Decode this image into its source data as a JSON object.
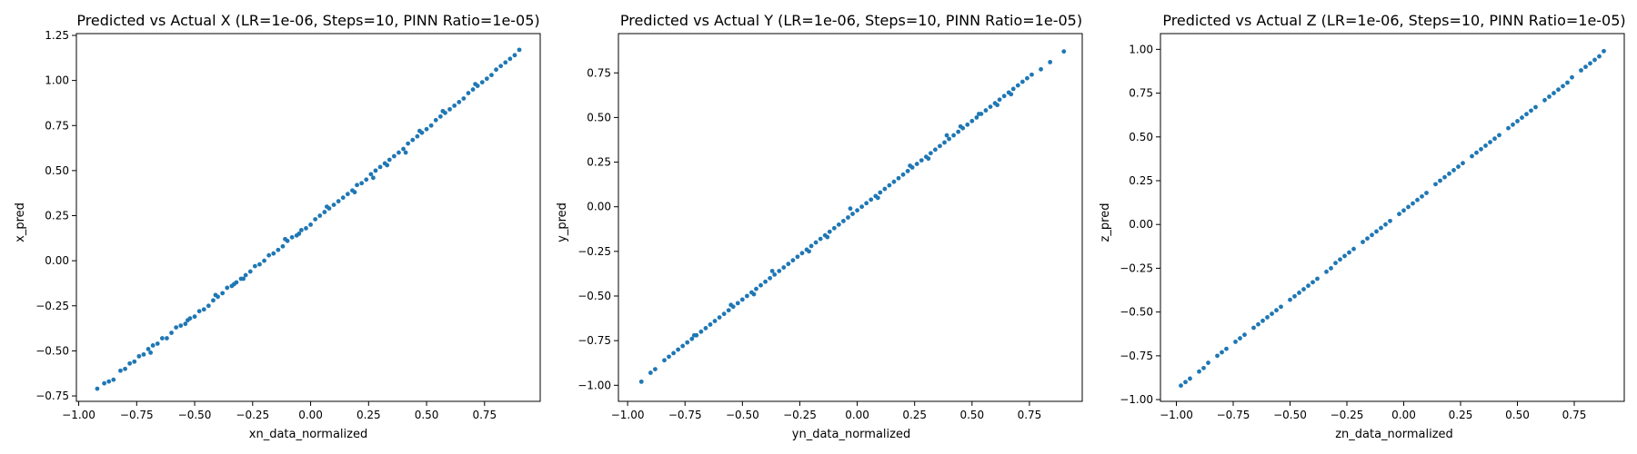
{
  "chart_data": [
    {
      "type": "scatter",
      "title": "Predicted vs Actual X (LR=1e-06, Steps=10, PINN Ratio=1e-05)",
      "xlabel": "xn_data_normalized",
      "ylabel": "x_pred",
      "xlim": [
        -1.01,
        0.99
      ],
      "ylim": [
        -0.78,
        1.26
      ],
      "xticks": [
        -1.0,
        -0.75,
        -0.5,
        -0.25,
        0.0,
        0.25,
        0.5,
        0.75
      ],
      "xtick_labels": [
        "−1.00",
        "−0.75",
        "−0.50",
        "−0.25",
        "0.00",
        "0.25",
        "0.50",
        "0.75"
      ],
      "yticks": [
        -0.75,
        -0.5,
        -0.25,
        0.0,
        0.25,
        0.5,
        0.75,
        1.0,
        1.25
      ],
      "ytick_labels": [
        "−0.75",
        "−0.50",
        "−0.25",
        "0.00",
        "0.25",
        "0.50",
        "0.75",
        "1.00",
        "1.25"
      ],
      "color": "#1f77b4",
      "points": [
        [
          -0.92,
          -0.71
        ],
        [
          -0.89,
          -0.68
        ],
        [
          -0.87,
          -0.67
        ],
        [
          -0.85,
          -0.66
        ],
        [
          -0.82,
          -0.61
        ],
        [
          -0.8,
          -0.6
        ],
        [
          -0.78,
          -0.57
        ],
        [
          -0.76,
          -0.56
        ],
        [
          -0.74,
          -0.53
        ],
        [
          -0.72,
          -0.52
        ],
        [
          -0.7,
          -0.49
        ],
        [
          -0.68,
          -0.47
        ],
        [
          -0.66,
          -0.46
        ],
        [
          -0.64,
          -0.43
        ],
        [
          -0.62,
          -0.43
        ],
        [
          -0.6,
          -0.4
        ],
        [
          -0.58,
          -0.37
        ],
        [
          -0.56,
          -0.36
        ],
        [
          -0.54,
          -0.35
        ],
        [
          -0.52,
          -0.32
        ],
        [
          -0.5,
          -0.31
        ],
        [
          -0.48,
          -0.28
        ],
        [
          -0.46,
          -0.27
        ],
        [
          -0.44,
          -0.25
        ],
        [
          -0.42,
          -0.22
        ],
        [
          -0.4,
          -0.2
        ],
        [
          -0.38,
          -0.18
        ],
        [
          -0.36,
          -0.15
        ],
        [
          -0.34,
          -0.14
        ],
        [
          -0.32,
          -0.12
        ],
        [
          -0.3,
          -0.1
        ],
        [
          -0.28,
          -0.08
        ],
        [
          -0.26,
          -0.06
        ],
        [
          -0.24,
          -0.03
        ],
        [
          -0.22,
          -0.02
        ],
        [
          -0.2,
          0.0
        ],
        [
          -0.18,
          0.03
        ],
        [
          -0.16,
          0.04
        ],
        [
          -0.14,
          0.06
        ],
        [
          -0.12,
          0.08
        ],
        [
          -0.1,
          0.11
        ],
        [
          -0.08,
          0.13
        ],
        [
          -0.06,
          0.14
        ],
        [
          -0.04,
          0.17
        ],
        [
          -0.02,
          0.18
        ],
        [
          0.0,
          0.2
        ],
        [
          0.02,
          0.23
        ],
        [
          0.04,
          0.25
        ],
        [
          0.06,
          0.27
        ],
        [
          0.08,
          0.29
        ],
        [
          0.1,
          0.31
        ],
        [
          0.12,
          0.33
        ],
        [
          0.14,
          0.35
        ],
        [
          0.16,
          0.37
        ],
        [
          0.18,
          0.39
        ],
        [
          0.2,
          0.42
        ],
        [
          0.22,
          0.43
        ],
        [
          0.24,
          0.45
        ],
        [
          0.26,
          0.48
        ],
        [
          0.28,
          0.5
        ],
        [
          0.3,
          0.52
        ],
        [
          0.32,
          0.54
        ],
        [
          0.34,
          0.56
        ],
        [
          0.36,
          0.58
        ],
        [
          0.38,
          0.6
        ],
        [
          0.4,
          0.62
        ],
        [
          0.42,
          0.65
        ],
        [
          0.44,
          0.67
        ],
        [
          0.46,
          0.69
        ],
        [
          0.48,
          0.71
        ],
        [
          0.5,
          0.73
        ],
        [
          0.52,
          0.75
        ],
        [
          0.54,
          0.78
        ],
        [
          0.56,
          0.8
        ],
        [
          0.58,
          0.82
        ],
        [
          0.6,
          0.84
        ],
        [
          0.62,
          0.86
        ],
        [
          0.64,
          0.88
        ],
        [
          0.66,
          0.9
        ],
        [
          0.68,
          0.93
        ],
        [
          0.7,
          0.95
        ],
        [
          0.72,
          0.97
        ],
        [
          0.74,
          0.99
        ],
        [
          0.76,
          1.01
        ],
        [
          0.78,
          1.03
        ],
        [
          0.8,
          1.06
        ],
        [
          0.82,
          1.08
        ],
        [
          0.84,
          1.1
        ],
        [
          0.86,
          1.12
        ],
        [
          0.88,
          1.14
        ],
        [
          0.9,
          1.17
        ],
        [
          -0.69,
          -0.51
        ],
        [
          -0.53,
          -0.33
        ],
        [
          -0.41,
          -0.19
        ],
        [
          -0.29,
          -0.1
        ],
        [
          -0.11,
          0.12
        ],
        [
          0.07,
          0.3
        ],
        [
          0.19,
          0.38
        ],
        [
          0.33,
          0.53
        ],
        [
          0.47,
          0.72
        ],
        [
          0.57,
          0.83
        ],
        [
          0.71,
          0.98
        ],
        [
          0.27,
          0.46
        ],
        [
          -0.05,
          0.15
        ],
        [
          0.41,
          0.6
        ],
        [
          -0.33,
          -0.13
        ]
      ]
    },
    {
      "type": "scatter",
      "title": "Predicted vs Actual Y (LR=1e-06, Steps=10, PINN Ratio=1e-05)",
      "xlabel": "yn_data_normalized",
      "ylabel": "y_pred",
      "xlim": [
        -1.04,
        0.98
      ],
      "ylim": [
        -1.09,
        0.97
      ],
      "xticks": [
        -1.0,
        -0.75,
        -0.5,
        -0.25,
        0.0,
        0.25,
        0.5,
        0.75
      ],
      "xtick_labels": [
        "−1.00",
        "−0.75",
        "−0.50",
        "−0.25",
        "0.00",
        "0.25",
        "0.50",
        "0.75"
      ],
      "yticks": [
        -1.0,
        -0.75,
        -0.5,
        -0.25,
        0.0,
        0.25,
        0.5,
        0.75
      ],
      "ytick_labels": [
        "−1.00",
        "−0.75",
        "−0.50",
        "−0.25",
        "0.00",
        "0.25",
        "0.50",
        "0.75"
      ],
      "color": "#1f77b4",
      "points": [
        [
          -0.94,
          -0.98
        ],
        [
          -0.9,
          -0.93
        ],
        [
          -0.88,
          -0.91
        ],
        [
          -0.84,
          -0.86
        ],
        [
          -0.82,
          -0.84
        ],
        [
          -0.8,
          -0.82
        ],
        [
          -0.78,
          -0.8
        ],
        [
          -0.76,
          -0.78
        ],
        [
          -0.74,
          -0.76
        ],
        [
          -0.72,
          -0.74
        ],
        [
          -0.7,
          -0.72
        ],
        [
          -0.68,
          -0.7
        ],
        [
          -0.66,
          -0.68
        ],
        [
          -0.64,
          -0.66
        ],
        [
          -0.62,
          -0.64
        ],
        [
          -0.6,
          -0.62
        ],
        [
          -0.58,
          -0.6
        ],
        [
          -0.56,
          -0.58
        ],
        [
          -0.54,
          -0.56
        ],
        [
          -0.52,
          -0.54
        ],
        [
          -0.5,
          -0.52
        ],
        [
          -0.48,
          -0.5
        ],
        [
          -0.46,
          -0.48
        ],
        [
          -0.44,
          -0.46
        ],
        [
          -0.42,
          -0.44
        ],
        [
          -0.4,
          -0.42
        ],
        [
          -0.38,
          -0.4
        ],
        [
          -0.36,
          -0.38
        ],
        [
          -0.34,
          -0.36
        ],
        [
          -0.32,
          -0.34
        ],
        [
          -0.3,
          -0.32
        ],
        [
          -0.28,
          -0.3
        ],
        [
          -0.26,
          -0.28
        ],
        [
          -0.24,
          -0.26
        ],
        [
          -0.22,
          -0.24
        ],
        [
          -0.2,
          -0.22
        ],
        [
          -0.18,
          -0.2
        ],
        [
          -0.16,
          -0.18
        ],
        [
          -0.14,
          -0.16
        ],
        [
          -0.12,
          -0.14
        ],
        [
          -0.1,
          -0.12
        ],
        [
          -0.08,
          -0.1
        ],
        [
          -0.06,
          -0.08
        ],
        [
          -0.04,
          -0.06
        ],
        [
          -0.02,
          -0.04
        ],
        [
          0.0,
          -0.02
        ],
        [
          0.02,
          0.0
        ],
        [
          0.04,
          0.02
        ],
        [
          0.06,
          0.04
        ],
        [
          0.08,
          0.06
        ],
        [
          0.1,
          0.08
        ],
        [
          0.12,
          0.1
        ],
        [
          0.14,
          0.12
        ],
        [
          0.16,
          0.14
        ],
        [
          0.18,
          0.16
        ],
        [
          0.2,
          0.18
        ],
        [
          0.22,
          0.2
        ],
        [
          0.24,
          0.22
        ],
        [
          0.26,
          0.24
        ],
        [
          0.28,
          0.26
        ],
        [
          0.3,
          0.28
        ],
        [
          0.32,
          0.3
        ],
        [
          0.34,
          0.32
        ],
        [
          0.36,
          0.34
        ],
        [
          0.38,
          0.36
        ],
        [
          0.4,
          0.38
        ],
        [
          0.42,
          0.4
        ],
        [
          0.44,
          0.42
        ],
        [
          0.46,
          0.44
        ],
        [
          0.48,
          0.46
        ],
        [
          0.5,
          0.48
        ],
        [
          0.52,
          0.5
        ],
        [
          0.54,
          0.52
        ],
        [
          0.56,
          0.54
        ],
        [
          0.58,
          0.56
        ],
        [
          0.6,
          0.58
        ],
        [
          0.62,
          0.6
        ],
        [
          0.64,
          0.62
        ],
        [
          0.66,
          0.64
        ],
        [
          0.68,
          0.66
        ],
        [
          0.7,
          0.68
        ],
        [
          0.72,
          0.7
        ],
        [
          0.74,
          0.72
        ],
        [
          0.76,
          0.74
        ],
        [
          0.8,
          0.77
        ],
        [
          0.84,
          0.81
        ],
        [
          0.9,
          0.87
        ],
        [
          -0.71,
          -0.72
        ],
        [
          -0.55,
          -0.55
        ],
        [
          -0.37,
          -0.36
        ],
        [
          -0.21,
          -0.25
        ],
        [
          -0.03,
          -0.01
        ],
        [
          0.09,
          0.05
        ],
        [
          0.23,
          0.23
        ],
        [
          0.39,
          0.4
        ],
        [
          0.45,
          0.45
        ],
        [
          0.53,
          0.52
        ],
        [
          0.61,
          0.57
        ],
        [
          0.67,
          0.63
        ],
        [
          -0.13,
          -0.17
        ],
        [
          0.31,
          0.27
        ],
        [
          -0.45,
          -0.49
        ]
      ]
    },
    {
      "type": "scatter",
      "title": "Predicted vs Actual Z (LR=1e-06, Steps=10, PINN Ratio=1e-05)",
      "xlabel": "zn_data_normalized",
      "ylabel": "z_pred",
      "xlim": [
        -1.07,
        0.97
      ],
      "ylim": [
        -1.01,
        1.09
      ],
      "xticks": [
        -1.0,
        -0.75,
        -0.5,
        -0.25,
        0.0,
        0.25,
        0.5,
        0.75
      ],
      "xtick_labels": [
        "−1.00",
        "−0.75",
        "−0.50",
        "−0.25",
        "0.00",
        "0.25",
        "0.50",
        "0.75"
      ],
      "yticks": [
        -1.0,
        -0.75,
        -0.5,
        -0.25,
        0.0,
        0.25,
        0.5,
        0.75,
        1.0
      ],
      "ytick_labels": [
        "−1.00",
        "−0.75",
        "−0.50",
        "−0.25",
        "0.00",
        "0.25",
        "0.50",
        "0.75",
        "1.00"
      ],
      "color": "#1f77b4",
      "points": [
        [
          -0.98,
          -0.92
        ],
        [
          -0.94,
          -0.88
        ],
        [
          -0.9,
          -0.84
        ],
        [
          -0.86,
          -0.79
        ],
        [
          -0.82,
          -0.75
        ],
        [
          -0.78,
          -0.71
        ],
        [
          -0.74,
          -0.67
        ],
        [
          -0.7,
          -0.63
        ],
        [
          -0.66,
          -0.59
        ],
        [
          -0.62,
          -0.55
        ],
        [
          -0.58,
          -0.51
        ],
        [
          -0.54,
          -0.47
        ],
        [
          -0.5,
          -0.43
        ],
        [
          -0.46,
          -0.39
        ],
        [
          -0.42,
          -0.35
        ],
        [
          -0.38,
          -0.31
        ],
        [
          -0.34,
          -0.27
        ],
        [
          -0.3,
          -0.22
        ],
        [
          -0.26,
          -0.18
        ],
        [
          -0.22,
          -0.14
        ],
        [
          -0.18,
          -0.1
        ],
        [
          -0.14,
          -0.06
        ],
        [
          -0.1,
          -0.02
        ],
        [
          -0.06,
          0.02
        ],
        [
          -0.02,
          0.06
        ],
        [
          0.02,
          0.1
        ],
        [
          0.06,
          0.14
        ],
        [
          0.1,
          0.18
        ],
        [
          0.14,
          0.23
        ],
        [
          0.18,
          0.27
        ],
        [
          0.22,
          0.31
        ],
        [
          0.26,
          0.35
        ],
        [
          0.3,
          0.39
        ],
        [
          0.34,
          0.43
        ],
        [
          0.38,
          0.47
        ],
        [
          0.42,
          0.51
        ],
        [
          0.46,
          0.55
        ],
        [
          0.5,
          0.59
        ],
        [
          0.54,
          0.63
        ],
        [
          0.58,
          0.67
        ],
        [
          0.62,
          0.71
        ],
        [
          0.66,
          0.75
        ],
        [
          0.7,
          0.79
        ],
        [
          0.74,
          0.84
        ],
        [
          0.78,
          0.88
        ],
        [
          0.82,
          0.92
        ],
        [
          0.86,
          0.96
        ],
        [
          0.88,
          0.99
        ],
        [
          -0.96,
          -0.9
        ],
        [
          -0.88,
          -0.82
        ],
        [
          -0.8,
          -0.73
        ],
        [
          -0.72,
          -0.65
        ],
        [
          -0.64,
          -0.57
        ],
        [
          -0.56,
          -0.49
        ],
        [
          -0.48,
          -0.41
        ],
        [
          -0.4,
          -0.33
        ],
        [
          -0.32,
          -0.25
        ],
        [
          -0.24,
          -0.16
        ],
        [
          -0.16,
          -0.08
        ],
        [
          -0.08,
          0.0
        ],
        [
          0.0,
          0.08
        ],
        [
          0.08,
          0.16
        ],
        [
          0.16,
          0.25
        ],
        [
          0.24,
          0.33
        ],
        [
          0.32,
          0.41
        ],
        [
          0.4,
          0.49
        ],
        [
          0.48,
          0.57
        ],
        [
          0.56,
          0.65
        ],
        [
          0.64,
          0.73
        ],
        [
          0.72,
          0.81
        ],
        [
          0.8,
          0.9
        ],
        [
          -0.6,
          -0.53
        ],
        [
          -0.44,
          -0.37
        ],
        [
          -0.28,
          -0.2
        ],
        [
          -0.12,
          -0.04
        ],
        [
          0.04,
          0.12
        ],
        [
          0.2,
          0.29
        ],
        [
          0.36,
          0.45
        ],
        [
          0.52,
          0.61
        ],
        [
          0.68,
          0.77
        ],
        [
          0.84,
          0.94
        ]
      ]
    }
  ]
}
